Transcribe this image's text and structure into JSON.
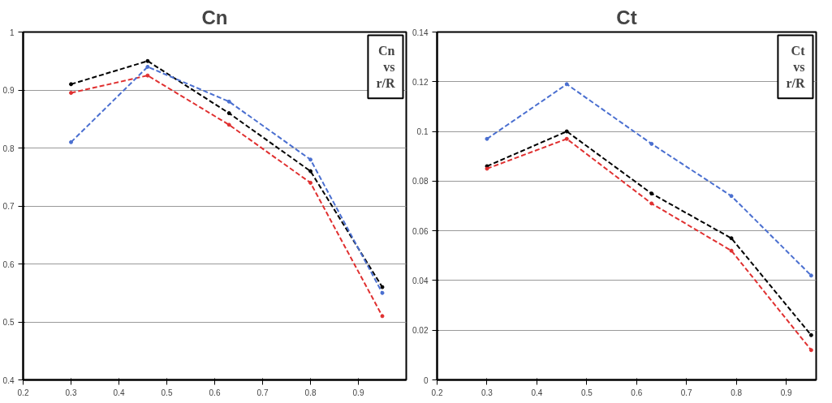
{
  "chart_data": [
    {
      "type": "line",
      "title": "Cn",
      "annotations": [
        "Cn\nvs\nr/R"
      ],
      "x": [
        0.3,
        0.46,
        0.63,
        0.8,
        0.95
      ],
      "xlim": [
        0.2,
        1.0
      ],
      "xticks": [
        0.2,
        0.3,
        0.4,
        0.5,
        0.6,
        0.7,
        0.8,
        0.9
      ],
      "ylim": [
        0.4,
        1.0
      ],
      "yticks": [
        0.4,
        0.5,
        0.6,
        0.7,
        0.8,
        0.9,
        1
      ],
      "grid": "y",
      "line_style": "dashed",
      "marker": "circle",
      "series": [
        {
          "color": "#000000",
          "values": [
            0.91,
            0.95,
            0.86,
            0.76,
            0.56
          ]
        },
        {
          "color": "#e03030",
          "values": [
            0.895,
            0.925,
            0.84,
            0.74,
            0.51
          ]
        },
        {
          "color": "#4a6fd0",
          "values": [
            0.81,
            0.94,
            0.88,
            0.78,
            0.55
          ]
        }
      ]
    },
    {
      "type": "line",
      "title": "Ct",
      "annotations": [
        "Ct\nvs\nr/R"
      ],
      "x": [
        0.3,
        0.46,
        0.63,
        0.79,
        0.95
      ],
      "xlim": [
        0.2,
        0.96
      ],
      "xticks": [
        0.2,
        0.3,
        0.4,
        0.5,
        0.6,
        0.7,
        0.8,
        0.9
      ],
      "ylim": [
        0,
        0.14
      ],
      "yticks": [
        0,
        0.02,
        0.04,
        0.06,
        0.08,
        0.1,
        0.12,
        0.14
      ],
      "grid": "y",
      "line_style": "dashed",
      "marker": "circle",
      "series": [
        {
          "color": "#000000",
          "values": [
            0.086,
            0.1,
            0.075,
            0.057,
            0.018
          ]
        },
        {
          "color": "#e03030",
          "values": [
            0.085,
            0.097,
            0.071,
            0.052,
            0.012
          ]
        },
        {
          "color": "#4a6fd0",
          "values": [
            0.097,
            0.119,
            0.095,
            0.074,
            0.042
          ]
        }
      ]
    }
  ]
}
